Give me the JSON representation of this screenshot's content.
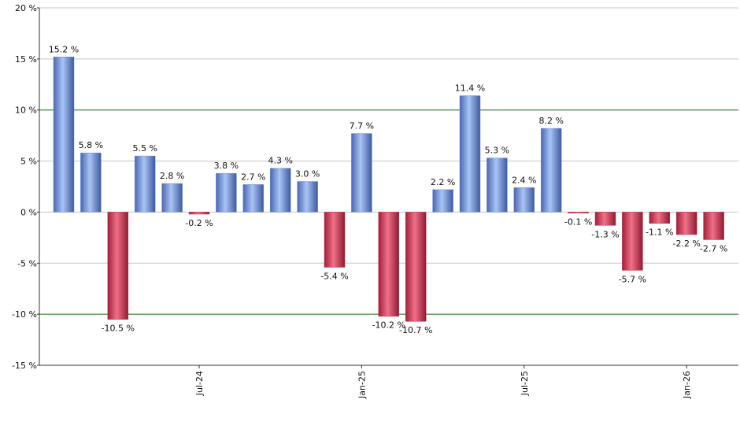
{
  "chart_data": {
    "type": "bar",
    "categories": [
      null,
      null,
      null,
      null,
      null,
      "Jul-24",
      null,
      null,
      null,
      null,
      null,
      "Jan-25",
      null,
      null,
      null,
      null,
      null,
      "Jul-25",
      null,
      null,
      null,
      null,
      null,
      "Jan-26",
      null
    ],
    "values": [
      15.2,
      5.8,
      -10.5,
      5.5,
      2.8,
      -0.2,
      3.8,
      2.7,
      4.3,
      3.0,
      -5.4,
      7.7,
      -10.2,
      -10.7,
      2.2,
      11.4,
      5.3,
      2.4,
      8.2,
      -0.1,
      -1.3,
      -5.7,
      -1.1,
      -2.2,
      -2.7
    ],
    "value_labels": [
      "15.2 %",
      "5.8 %",
      "-10.5 %",
      "5.5 %",
      "2.8 %",
      "-0.2 %",
      "3.8 %",
      "2.7 %",
      "4.3 %",
      "3.0 %",
      "-5.4 %",
      "7.7 %",
      "-10.2 %",
      "-10.7 %",
      "2.2 %",
      "11.4 %",
      "5.3 %",
      "2.4 %",
      "8.2 %",
      "-0.1 %",
      "-1.3 %",
      "-5.7 %",
      "-1.1 %",
      "-2.2 %",
      "-2.7 %"
    ],
    "colors": {
      "positive": "#6f8fd8",
      "negative": "#c8304c"
    },
    "ylim": [
      -15,
      20
    ],
    "yticks": [
      {
        "value": -15,
        "label": "-15 %"
      },
      {
        "value": -10,
        "label": "-10 %"
      },
      {
        "value": -5,
        "label": "-5 %"
      },
      {
        "value": 0,
        "label": "0 %"
      },
      {
        "value": 5,
        "label": "5 %"
      },
      {
        "value": 10,
        "label": "10 %"
      },
      {
        "value": 15,
        "label": "15 %"
      },
      {
        "value": 20,
        "label": "20 %"
      }
    ],
    "reference_lines": [
      10,
      -10
    ],
    "reference_color": "#1a7a1a",
    "grid": true
  }
}
